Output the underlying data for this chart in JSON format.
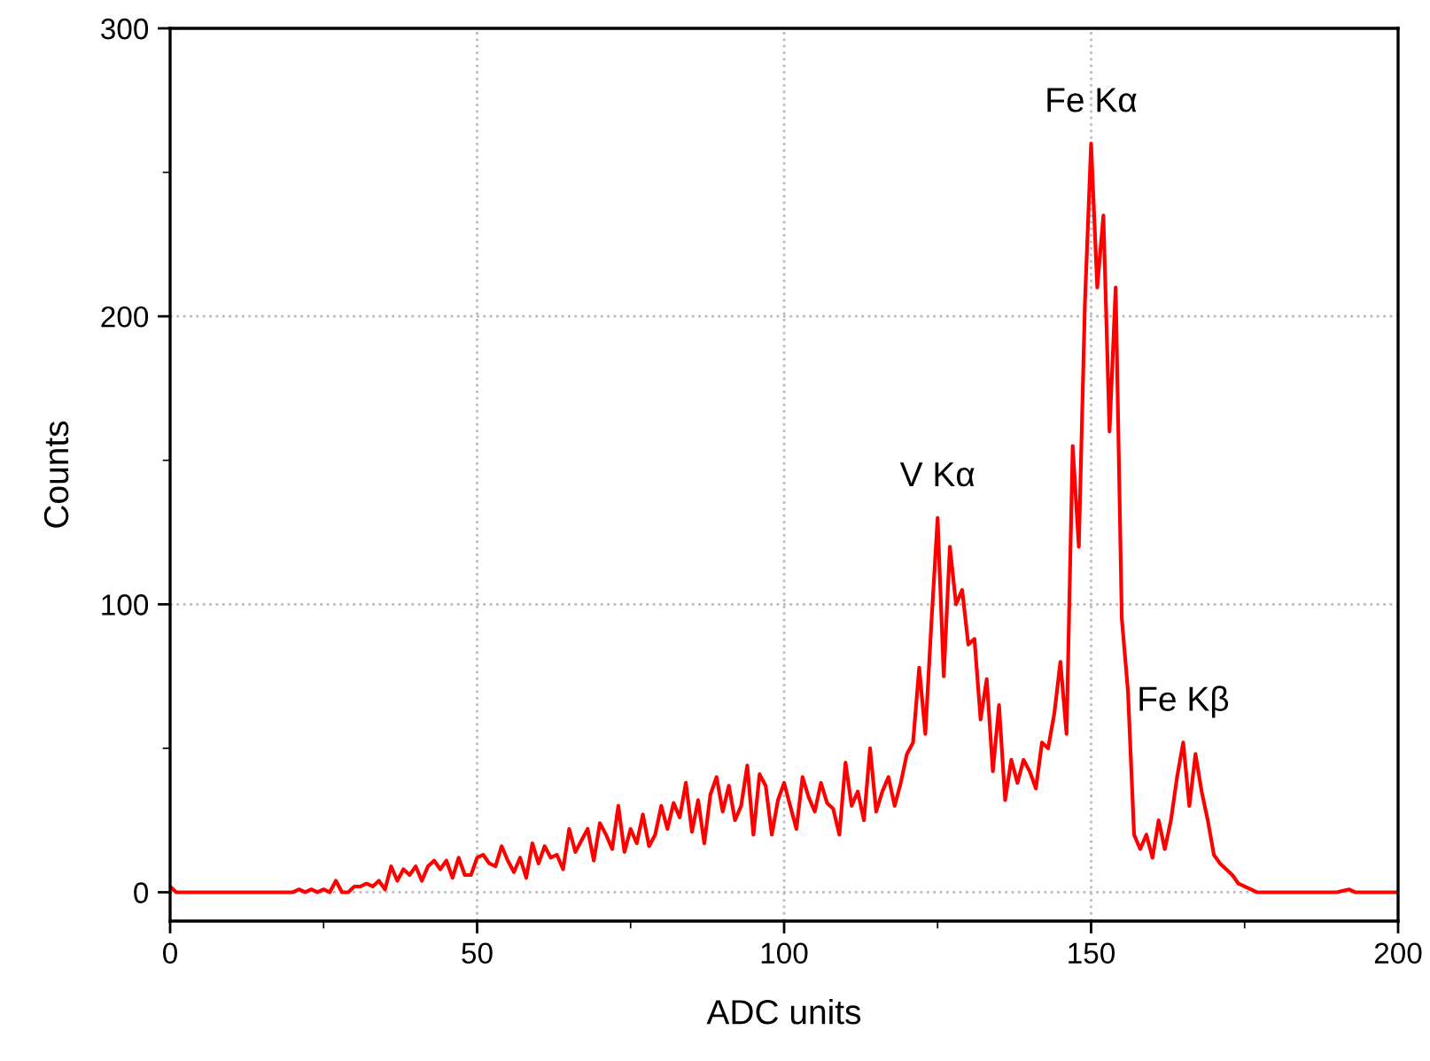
{
  "chart_data": {
    "type": "line",
    "xlabel": "ADC units",
    "ylabel": "Counts",
    "xlim": [
      0,
      200
    ],
    "xticks": [
      0,
      50,
      100,
      150,
      200
    ],
    "ylim": [
      -10,
      300
    ],
    "yticks": [
      0,
      100,
      200,
      300
    ],
    "grid": true,
    "series": [
      {
        "color": "#ff0000",
        "x": [
          0,
          1,
          2,
          5,
          10,
          15,
          20,
          21,
          22,
          23,
          24,
          25,
          26,
          27,
          28,
          29,
          30,
          31,
          32,
          33,
          34,
          35,
          36,
          37,
          38,
          39,
          40,
          41,
          42,
          43,
          44,
          45,
          46,
          47,
          48,
          49,
          50,
          51,
          52,
          53,
          54,
          55,
          56,
          57,
          58,
          59,
          60,
          61,
          62,
          63,
          64,
          65,
          66,
          67,
          68,
          69,
          70,
          71,
          72,
          73,
          74,
          75,
          76,
          77,
          78,
          79,
          80,
          81,
          82,
          83,
          84,
          85,
          86,
          87,
          88,
          89,
          90,
          91,
          92,
          93,
          94,
          95,
          96,
          97,
          98,
          99,
          100,
          101,
          102,
          103,
          104,
          105,
          106,
          107,
          108,
          109,
          110,
          111,
          112,
          113,
          114,
          115,
          116,
          117,
          118,
          119,
          120,
          121,
          122,
          123,
          124,
          125,
          126,
          127,
          128,
          129,
          130,
          131,
          132,
          133,
          134,
          135,
          136,
          137,
          138,
          139,
          140,
          141,
          142,
          143,
          144,
          145,
          146,
          147,
          148,
          149,
          150,
          151,
          152,
          153,
          154,
          155,
          156,
          157,
          158,
          159,
          160,
          161,
          162,
          163,
          164,
          165,
          166,
          167,
          168,
          169,
          170,
          171,
          172,
          173,
          174,
          175,
          176,
          177,
          180,
          185,
          190,
          192,
          193,
          195,
          200
        ],
        "values": [
          2,
          0,
          0,
          0,
          0,
          0,
          0,
          1,
          0,
          1,
          0,
          1,
          0,
          4,
          0,
          0,
          2,
          2,
          3,
          2,
          4,
          1,
          9,
          4,
          8,
          6,
          9,
          4,
          9,
          11,
          8,
          11,
          5,
          12,
          6,
          6,
          12,
          13,
          10,
          9,
          16,
          11,
          7,
          12,
          5,
          17,
          10,
          16,
          12,
          13,
          8,
          22,
          14,
          18,
          22,
          11,
          24,
          20,
          15,
          30,
          14,
          22,
          17,
          27,
          16,
          20,
          30,
          22,
          31,
          26,
          38,
          21,
          32,
          17,
          34,
          40,
          28,
          37,
          25,
          30,
          44,
          20,
          41,
          37,
          20,
          32,
          38,
          30,
          22,
          40,
          33,
          28,
          38,
          31,
          29,
          20,
          45,
          30,
          35,
          25,
          50,
          28,
          35,
          40,
          30,
          38,
          48,
          52,
          78,
          55,
          94,
          130,
          75,
          120,
          100,
          105,
          86,
          88,
          60,
          74,
          42,
          65,
          32,
          46,
          38,
          46,
          42,
          36,
          52,
          50,
          62,
          80,
          55,
          155,
          120,
          205,
          260,
          210,
          235,
          160,
          210,
          95,
          70,
          20,
          15,
          20,
          12,
          25,
          15,
          25,
          40,
          52,
          30,
          48,
          35,
          25,
          13,
          10,
          8,
          6,
          3,
          2,
          1,
          0,
          0,
          0,
          0,
          1,
          0,
          0,
          0
        ]
      }
    ],
    "annotations": [
      {
        "text": "V Kα",
        "x": 125,
        "y": 130
      },
      {
        "text": "Fe Kα",
        "x": 150,
        "y": 260
      },
      {
        "text": "Fe Kβ",
        "x": 165,
        "y": 52
      }
    ]
  }
}
